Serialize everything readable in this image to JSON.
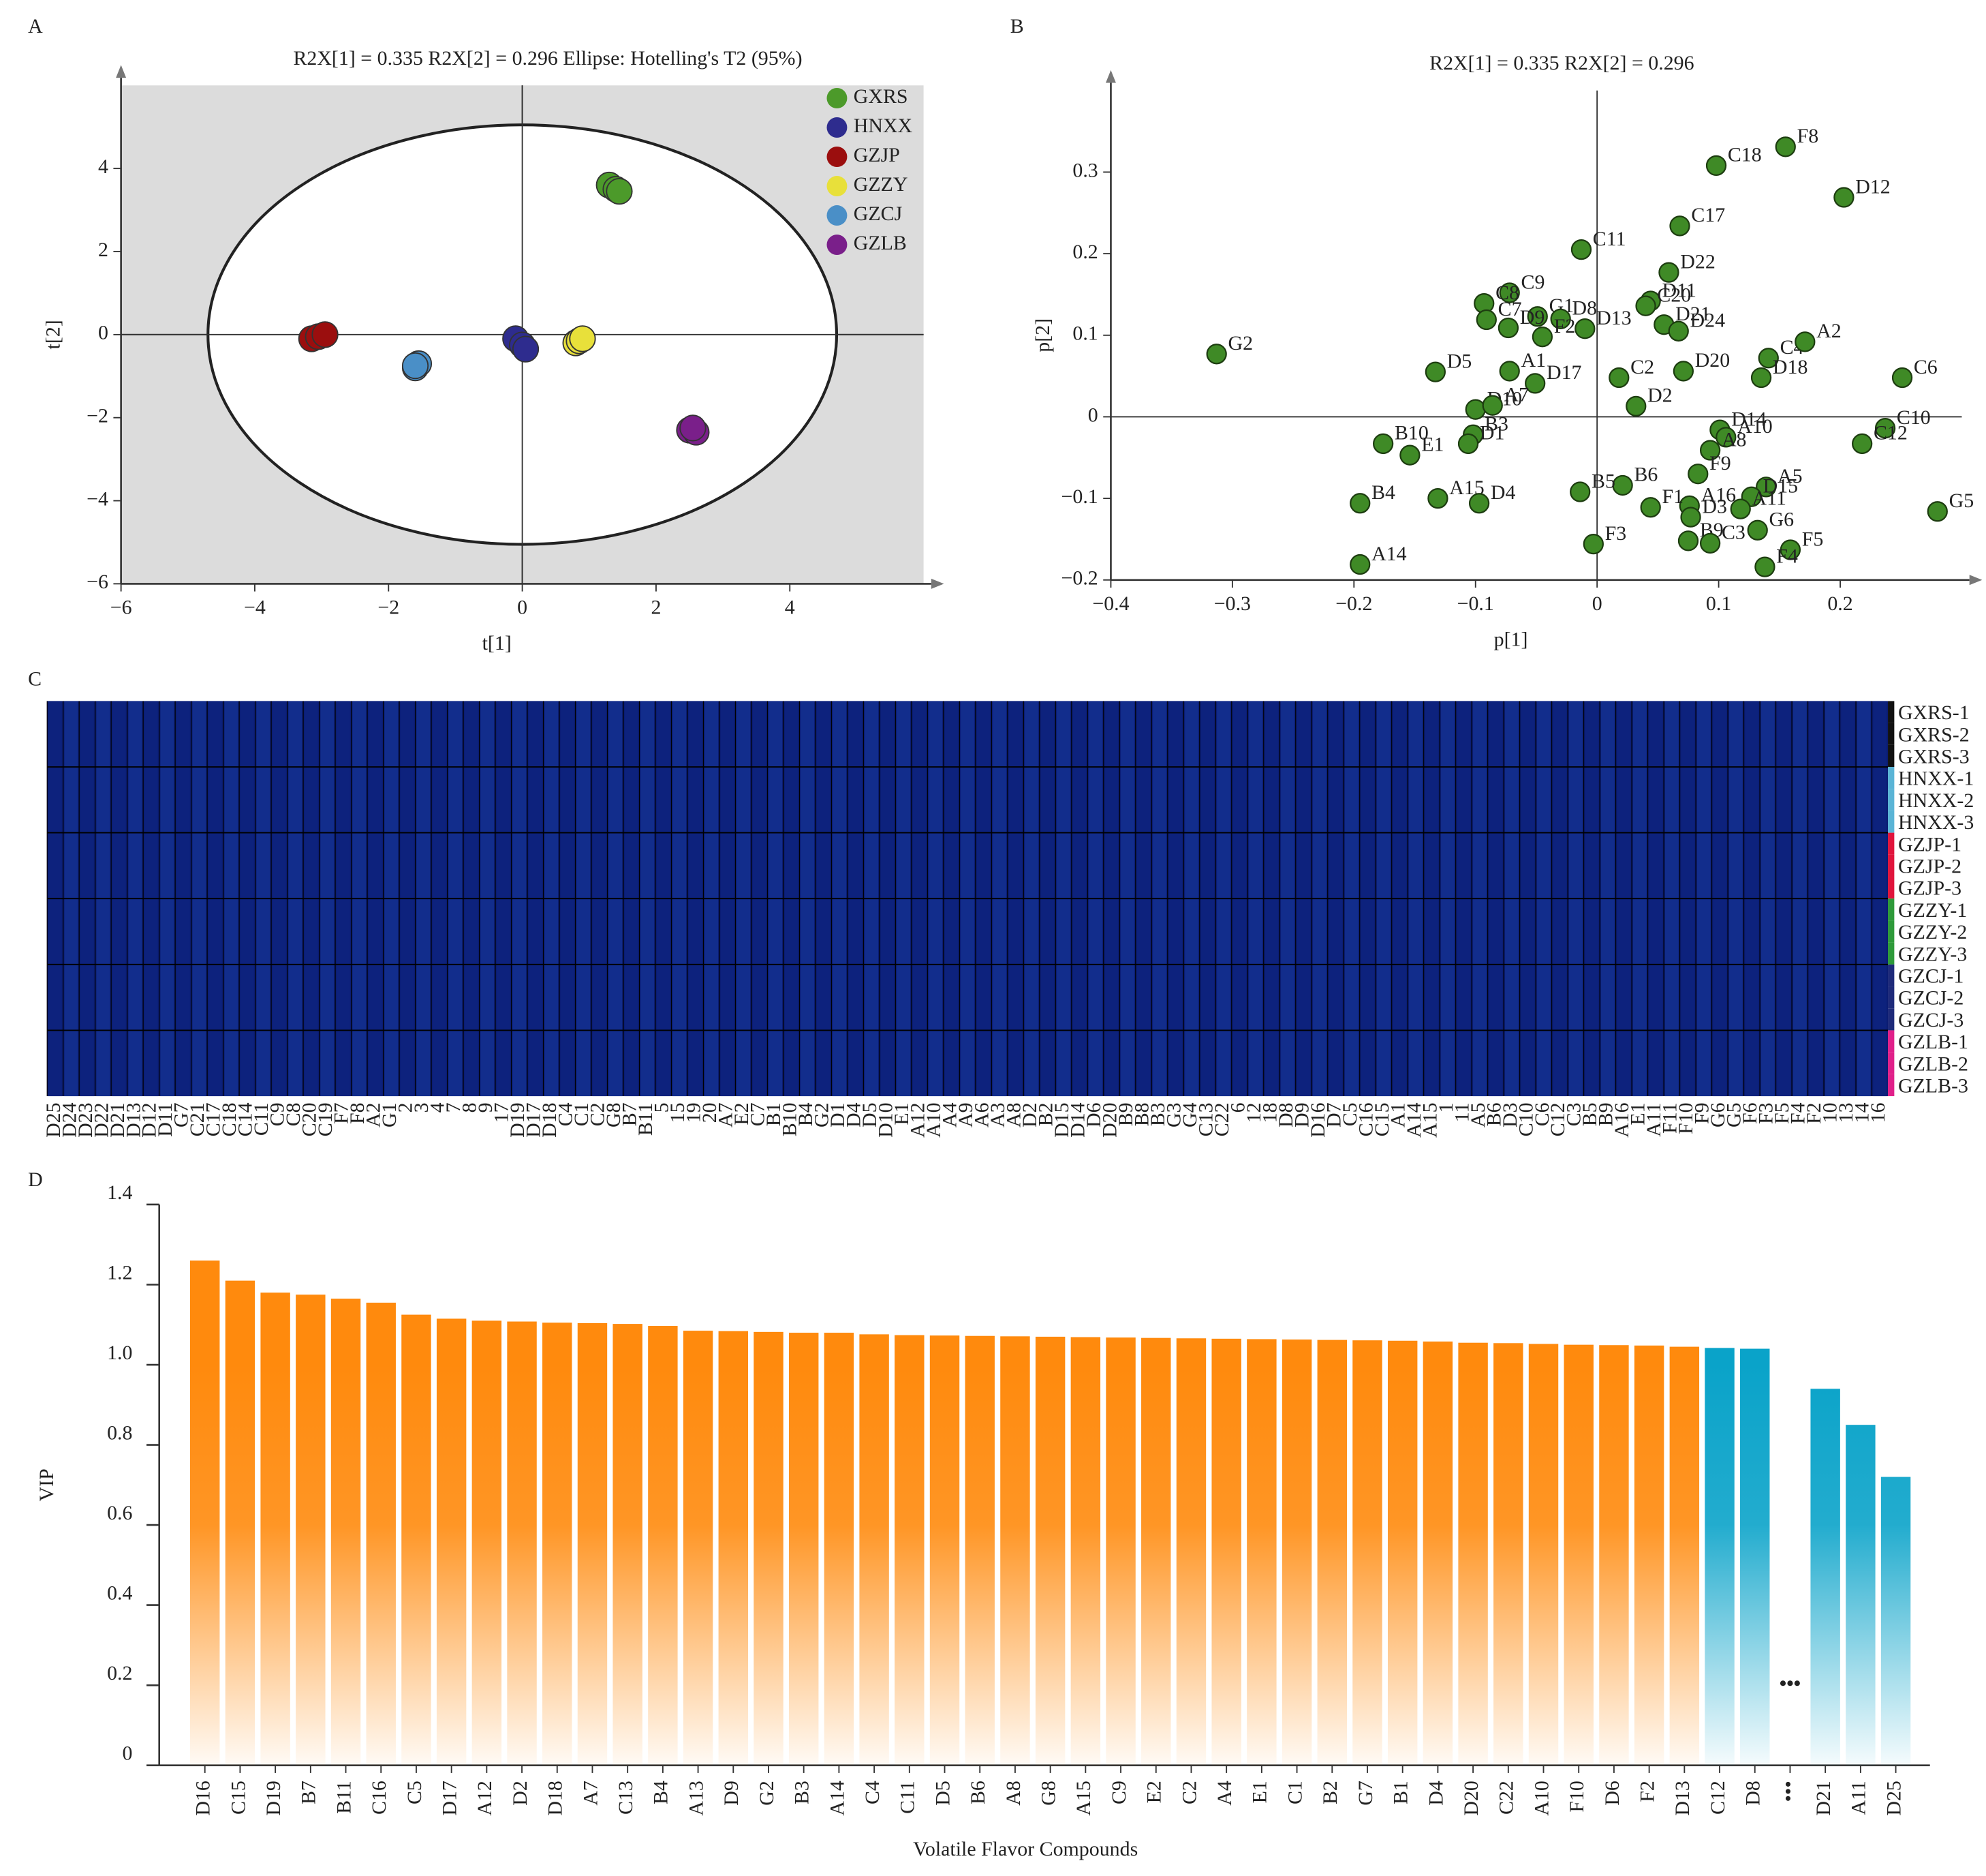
{
  "chart_data": [
    {
      "panel": "A",
      "type": "scatter",
      "title": "R2X[1] = 0.335    R2X[2] = 0.296    Ellipse: Hotelling's T2 (95%)",
      "x_label": "t[1]",
      "y_label": "t[2]",
      "xlim": [
        -6,
        6
      ],
      "ylim": [
        -6,
        6
      ],
      "xticks": [
        {
          "value": -6,
          "label": "−6"
        },
        {
          "value": -4,
          "label": "−4"
        },
        {
          "value": -2,
          "label": "−2"
        },
        0,
        2,
        4
      ],
      "yticks": [
        {
          "value": -6,
          "label": "−6"
        },
        {
          "value": -4,
          "label": "−4"
        },
        {
          "value": -2,
          "label": "−2"
        },
        0,
        2,
        4
      ],
      "ellipse": {
        "cx": 0,
        "cy": 0,
        "rx": 4.7,
        "ry": 5.05
      },
      "legend": "upper right",
      "background": "#dcdcdc",
      "series": [
        {
          "name": "GXRS",
          "color": "#4c9a2a",
          "x": [
            1.3,
            1.4,
            1.45
          ],
          "y": [
            3.6,
            3.5,
            3.45
          ]
        },
        {
          "name": "HNXX",
          "color": "#2e2c8e",
          "x": [
            -0.1,
            0,
            0.05
          ],
          "y": [
            -0.1,
            -0.25,
            -0.35
          ]
        },
        {
          "name": "GZJP",
          "color": "#9b0e0e",
          "x": [
            -3.15,
            -3.05,
            -2.95
          ],
          "y": [
            -0.1,
            -0.05,
            0
          ]
        },
        {
          "name": "GZZY",
          "color": "#e8e03a",
          "x": [
            0.8,
            0.85,
            0.9
          ],
          "y": [
            -0.2,
            -0.15,
            -0.1
          ]
        },
        {
          "name": "GZCJ",
          "color": "#4a8fc7",
          "x": [
            -1.6,
            -1.55,
            -1.6
          ],
          "y": [
            -0.8,
            -0.7,
            -0.75
          ]
        },
        {
          "name": "GZLB",
          "color": "#7a1f8a",
          "x": [
            2.5,
            2.6,
            2.55
          ],
          "y": [
            -2.3,
            -2.35,
            -2.25
          ]
        }
      ]
    },
    {
      "panel": "B",
      "type": "scatter",
      "title": "R2X[1] = 0.335    R2X[2] = 0.296",
      "x_label": "p[1]",
      "y_label": "p[2]",
      "xlim": [
        -0.4,
        0.3
      ],
      "ylim": [
        -0.2,
        0.4
      ],
      "xticks": [
        {
          "value": -0.4,
          "label": "−0.4"
        },
        {
          "value": -0.3,
          "label": "−0.3"
        },
        {
          "value": -0.2,
          "label": "−0.2"
        },
        {
          "value": -0.1,
          "label": "−0.1"
        },
        0,
        0.1,
        0.2
      ],
      "yticks": [
        {
          "value": -0.2,
          "label": "−0.2"
        },
        {
          "value": -0.1,
          "label": "−0.1"
        },
        0,
        0.1,
        0.2,
        0.3
      ],
      "color": "#3f8a26",
      "points": {
        "labels": [
          "G2",
          "F8",
          "C18",
          "D12",
          "C17",
          "C11",
          "D22",
          "D11",
          "C9",
          "C8",
          "C20",
          "G1",
          "D8",
          "C7",
          "D13",
          "D21",
          "D9",
          "F2",
          "D24",
          "C4",
          "A2",
          "C6",
          "D5",
          "A1",
          "D17",
          "D20",
          "D18",
          "D10",
          "A7",
          "C2",
          "B10",
          "B3",
          "E1",
          "D1",
          "D2",
          "D14",
          "A10",
          "A8",
          "C10",
          "C12",
          "A15",
          "B4",
          "D4",
          "B6",
          "B5",
          "F9",
          "A5",
          "D15",
          "A11",
          "A16",
          "F1",
          "D3",
          "G6",
          "F5",
          "G5",
          "F3",
          "B9",
          "C3",
          "F4",
          "A14"
        ],
        "x": [
          -0.313,
          0.155,
          0.098,
          0.203,
          0.068,
          -0.013,
          0.059,
          0.044,
          -0.072,
          -0.093,
          0.04,
          -0.049,
          -0.03,
          -0.091,
          -0.01,
          0.055,
          -0.073,
          -0.045,
          0.067,
          0.141,
          0.171,
          0.251,
          -0.133,
          -0.072,
          -0.051,
          0.071,
          0.135,
          -0.1,
          -0.086,
          0.018,
          -0.176,
          -0.102,
          -0.154,
          -0.106,
          0.032,
          0.101,
          0.106,
          0.093,
          0.237,
          0.218,
          -0.131,
          -0.195,
          -0.097,
          0.021,
          -0.014,
          0.083,
          0.139,
          0.127,
          0.118,
          0.076,
          0.044,
          0.077,
          0.132,
          0.159,
          0.28,
          -0.003,
          0.075,
          0.093,
          0.138,
          -0.195
        ],
        "y": [
          0.077,
          0.331,
          0.308,
          0.269,
          0.234,
          0.205,
          0.177,
          0.142,
          0.152,
          0.139,
          0.136,
          0.123,
          0.12,
          0.119,
          0.108,
          0.113,
          0.109,
          0.098,
          0.105,
          0.072,
          0.092,
          0.048,
          0.055,
          0.056,
          0.041,
          0.056,
          0.048,
          0.009,
          0.014,
          0.048,
          -0.033,
          -0.022,
          -0.047,
          -0.033,
          0.013,
          -0.016,
          -0.025,
          -0.041,
          -0.014,
          -0.033,
          -0.1,
          -0.106,
          -0.106,
          -0.084,
          -0.092,
          -0.07,
          -0.086,
          -0.098,
          -0.113,
          -0.109,
          -0.111,
          -0.123,
          -0.139,
          -0.163,
          -0.116,
          -0.156,
          -0.152,
          -0.155,
          -0.184,
          -0.181
        ]
      }
    },
    {
      "panel": "C",
      "type": "heatmap",
      "row_labels": [
        "GXRS-1",
        "GXRS-2",
        "GXRS-3",
        "HNXX-1",
        "HNXX-2",
        "HNXX-3",
        "GZJP-1",
        "GZJP-2",
        "GZJP-3",
        "GZZY-1",
        "GZZY-2",
        "GZZY-3",
        "GZCJ-1",
        "GZCJ-2",
        "GZCJ-3",
        "GZLB-1",
        "GZLB-2",
        "GZLB-3"
      ],
      "group_colors": [
        "#111111",
        "#5ab4d6",
        "#e0143c",
        "#2e9a3a",
        "#1e2a7a",
        "#e0208a"
      ],
      "column_labels": [
        "D25",
        "D24",
        "D23",
        "D22",
        "D21",
        "D13",
        "D12",
        "D11",
        "G7",
        "C21",
        "C17",
        "C18",
        "C14",
        "C11",
        "C9",
        "C8",
        "C20",
        "C19",
        "F7",
        "F8",
        "A2",
        "G1",
        "2",
        "3",
        "4",
        "7",
        "8",
        "9",
        "17",
        "D19",
        "D17",
        "D18",
        "C4",
        "C1",
        "C2",
        "G8",
        "B7",
        "B11",
        "5",
        "15",
        "19",
        "20",
        "A7",
        "E2",
        "C7",
        "B1",
        "B10",
        "B4",
        "G2",
        "D1",
        "D4",
        "D5",
        "D10",
        "E1",
        "A12",
        "A10",
        "A4",
        "A9",
        "A6",
        "A3",
        "A8",
        "D2",
        "B2",
        "D15",
        "D14",
        "D6",
        "D20",
        "B9",
        "B8",
        "B3",
        "G3",
        "G4",
        "C13",
        "C22",
        "6",
        "12",
        "18",
        "D8",
        "D9",
        "D16",
        "D7",
        "C5",
        "C16",
        "C15",
        "A1",
        "A14",
        "A15",
        "1",
        "11",
        "A5",
        "B6",
        "D3",
        "C10",
        "C6",
        "C12",
        "C3",
        "B5",
        "B9",
        "A16",
        "E1",
        "A11",
        "F11",
        "F10",
        "F9",
        "G6",
        "G5",
        "F6",
        "F3",
        "F5",
        "F4",
        "F2",
        "10",
        "13",
        "14",
        "16"
      ]
    },
    {
      "panel": "D",
      "type": "bar",
      "x_label": "Volatile Flavor Compounds",
      "y_label": "VIP",
      "annotation": "•••",
      "ylim": [
        0,
        1.4
      ],
      "yticks": [
        0,
        0.2,
        0.4,
        0.6,
        0.8,
        {
          "value": 1,
          "label": "1.0"
        },
        1.2,
        1.4
      ],
      "categories": [
        "D16",
        "C15",
        "D19",
        "B7",
        "B11",
        "C16",
        "C5",
        "D17",
        "A12",
        "D2",
        "D18",
        "A7",
        "C13",
        "B4",
        "A13",
        "D9",
        "G2",
        "B3",
        "A14",
        "C4",
        "C11",
        "D5",
        "B6",
        "A8",
        "G8",
        "A15",
        "C9",
        "E2",
        "C2",
        "A4",
        "E1",
        "C1",
        "B2",
        "G7",
        "B1",
        "D4",
        "D20",
        "C22",
        "A10",
        "F10",
        "D6",
        "F2",
        "D13",
        "C12",
        "D8",
        "•••",
        "D21",
        "A11",
        "D25"
      ],
      "values": [
        1.26,
        1.21,
        1.18,
        1.175,
        1.165,
        1.155,
        1.125,
        1.115,
        1.11,
        1.108,
        1.105,
        1.104,
        1.102,
        1.097,
        1.085,
        1.084,
        1.082,
        1.08,
        1.08,
        1.076,
        1.074,
        1.073,
        1.072,
        1.071,
        1.07,
        1.069,
        1.068,
        1.067,
        1.066,
        1.065,
        1.064,
        1.063,
        1.062,
        1.061,
        1.06,
        1.058,
        1.055,
        1.054,
        1.052,
        1.05,
        1.049,
        1.048,
        1.045,
        1.042,
        1.04,
        null,
        0.94,
        0.85,
        0.72
      ],
      "colors": [
        "#ff8a0d",
        "#ff8a0d",
        "#ff8a0d",
        "#ff8a0d",
        "#ff8a0d",
        "#ff8a0d",
        "#ff8a0d",
        "#ff8a0d",
        "#ff8a0d",
        "#ff8a0d",
        "#ff8a0d",
        "#ff8a0d",
        "#ff8a0d",
        "#ff8a0d",
        "#ff8a0d",
        "#ff8a0d",
        "#ff8a0d",
        "#ff8a0d",
        "#ff8a0d",
        "#ff8a0d",
        "#ff8a0d",
        "#ff8a0d",
        "#ff8a0d",
        "#ff8a0d",
        "#ff8a0d",
        "#ff8a0d",
        "#ff8a0d",
        "#ff8a0d",
        "#ff8a0d",
        "#ff8a0d",
        "#ff8a0d",
        "#ff8a0d",
        "#ff8a0d",
        "#ff8a0d",
        "#ff8a0d",
        "#ff8a0d",
        "#ff8a0d",
        "#ff8a0d",
        "#ff8a0d",
        "#ff8a0d",
        "#ff8a0d",
        "#ff8a0d",
        "#ff8a0d",
        "#0aa3c9",
        "#0aa3c9",
        null,
        "#0aa3c9",
        "#0aa3c9",
        "#0aa3c9"
      ]
    }
  ]
}
